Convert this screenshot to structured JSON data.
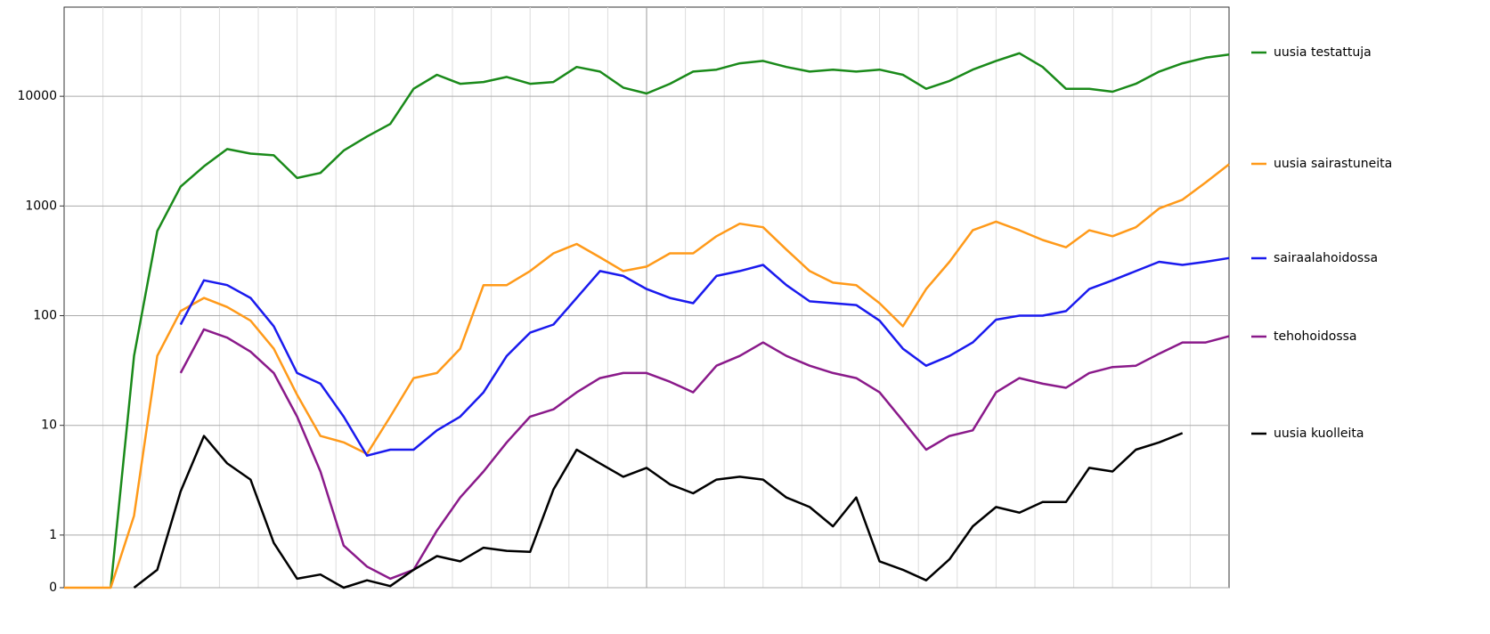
{
  "chart_data": {
    "type": "line",
    "yscale": "symlog",
    "grid": true,
    "legend": "right",
    "xlim": [
      0,
      50
    ],
    "ylim": [
      0,
      65000
    ],
    "yticks": [
      0,
      1,
      10,
      100,
      1000,
      10000
    ],
    "x": [
      0,
      1,
      2,
      3,
      4,
      5,
      6,
      7,
      8,
      9,
      10,
      11,
      12,
      13,
      14,
      15,
      16,
      17,
      18,
      19,
      20,
      21,
      22,
      23,
      24,
      25,
      26,
      27,
      28,
      29,
      30,
      31,
      32,
      33,
      34,
      35,
      36,
      37,
      38,
      39,
      40,
      41,
      42,
      43,
      44,
      45,
      46,
      47,
      48,
      49,
      50
    ],
    "series": [
      {
        "name": "uusia testattuja",
        "color": "#1a8a1a",
        "values": [
          null,
          null,
          0,
          43,
          590,
          1500,
          2300,
          3300,
          3000,
          2900,
          1800,
          2000,
          3200,
          4300,
          5600,
          11700,
          15700,
          13000,
          13500,
          15000,
          13000,
          13500,
          18500,
          16800,
          12000,
          10600,
          13000,
          16800,
          17500,
          20000,
          21000,
          18500,
          16800,
          17500,
          16800,
          17500,
          15700,
          11700,
          13800,
          17500,
          21000,
          24700,
          18500,
          11700,
          11700,
          11000,
          13000,
          16800,
          20000,
          22500,
          24000
        ]
      },
      {
        "name": "uusia sairastuneita",
        "color": "#ff9a1a",
        "values": [
          0,
          0,
          0,
          1.5,
          43,
          110,
          145,
          120,
          90,
          50,
          19,
          8,
          7,
          5.5,
          12,
          27,
          30,
          50,
          190,
          190,
          255,
          370,
          450,
          340,
          255,
          280,
          370,
          370,
          530,
          690,
          640,
          400,
          255,
          200,
          190,
          130,
          80,
          175,
          310,
          600,
          720,
          600,
          490,
          420,
          600,
          530,
          640,
          950,
          1140,
          1640,
          2400
        ]
      },
      {
        "name": "sairaalahoidossa",
        "color": "#1a1aee",
        "values": [
          null,
          null,
          null,
          null,
          null,
          83,
          210,
          190,
          145,
          80,
          30,
          24,
          12,
          5.3,
          6,
          6,
          9,
          12,
          20,
          43,
          70,
          83,
          145,
          255,
          230,
          175,
          145,
          130,
          230,
          255,
          290,
          190,
          135,
          130,
          125,
          90,
          50,
          35,
          43,
          57,
          92,
          100,
          100,
          110,
          175,
          210,
          255,
          310,
          290,
          310,
          335
        ]
      },
      {
        "name": "tehohoidossa",
        "color": "#8a1a8a",
        "values": [
          null,
          null,
          null,
          null,
          null,
          30,
          75,
          63,
          47,
          30,
          12,
          3.8,
          0.8,
          0.4,
          0.17,
          0.34,
          1.1,
          2.2,
          3.8,
          7,
          12,
          14,
          20,
          27,
          30,
          30,
          25,
          20,
          35,
          43,
          57,
          43,
          35,
          30,
          27,
          20,
          11,
          6,
          8,
          9,
          20,
          27,
          24,
          22,
          30,
          34,
          35,
          45,
          57,
          57,
          65
        ]
      },
      {
        "name": "uusia kuolleita",
        "color": "#000000",
        "values": [
          null,
          null,
          null,
          0,
          0.34,
          2.5,
          8,
          4.5,
          3.2,
          0.85,
          0.17,
          0.25,
          0,
          0.14,
          0.03,
          0.34,
          0.6,
          0.5,
          0.76,
          0.7,
          0.68,
          2.6,
          6,
          4.5,
          3.4,
          4.1,
          2.9,
          2.4,
          3.2,
          3.4,
          3.2,
          2.2,
          1.8,
          1.2,
          2.2,
          0.5,
          0.34,
          0.14,
          0.54,
          1.2,
          1.8,
          1.6,
          2,
          2,
          4.1,
          3.8,
          6,
          7,
          8.5,
          null,
          null
        ]
      }
    ]
  }
}
